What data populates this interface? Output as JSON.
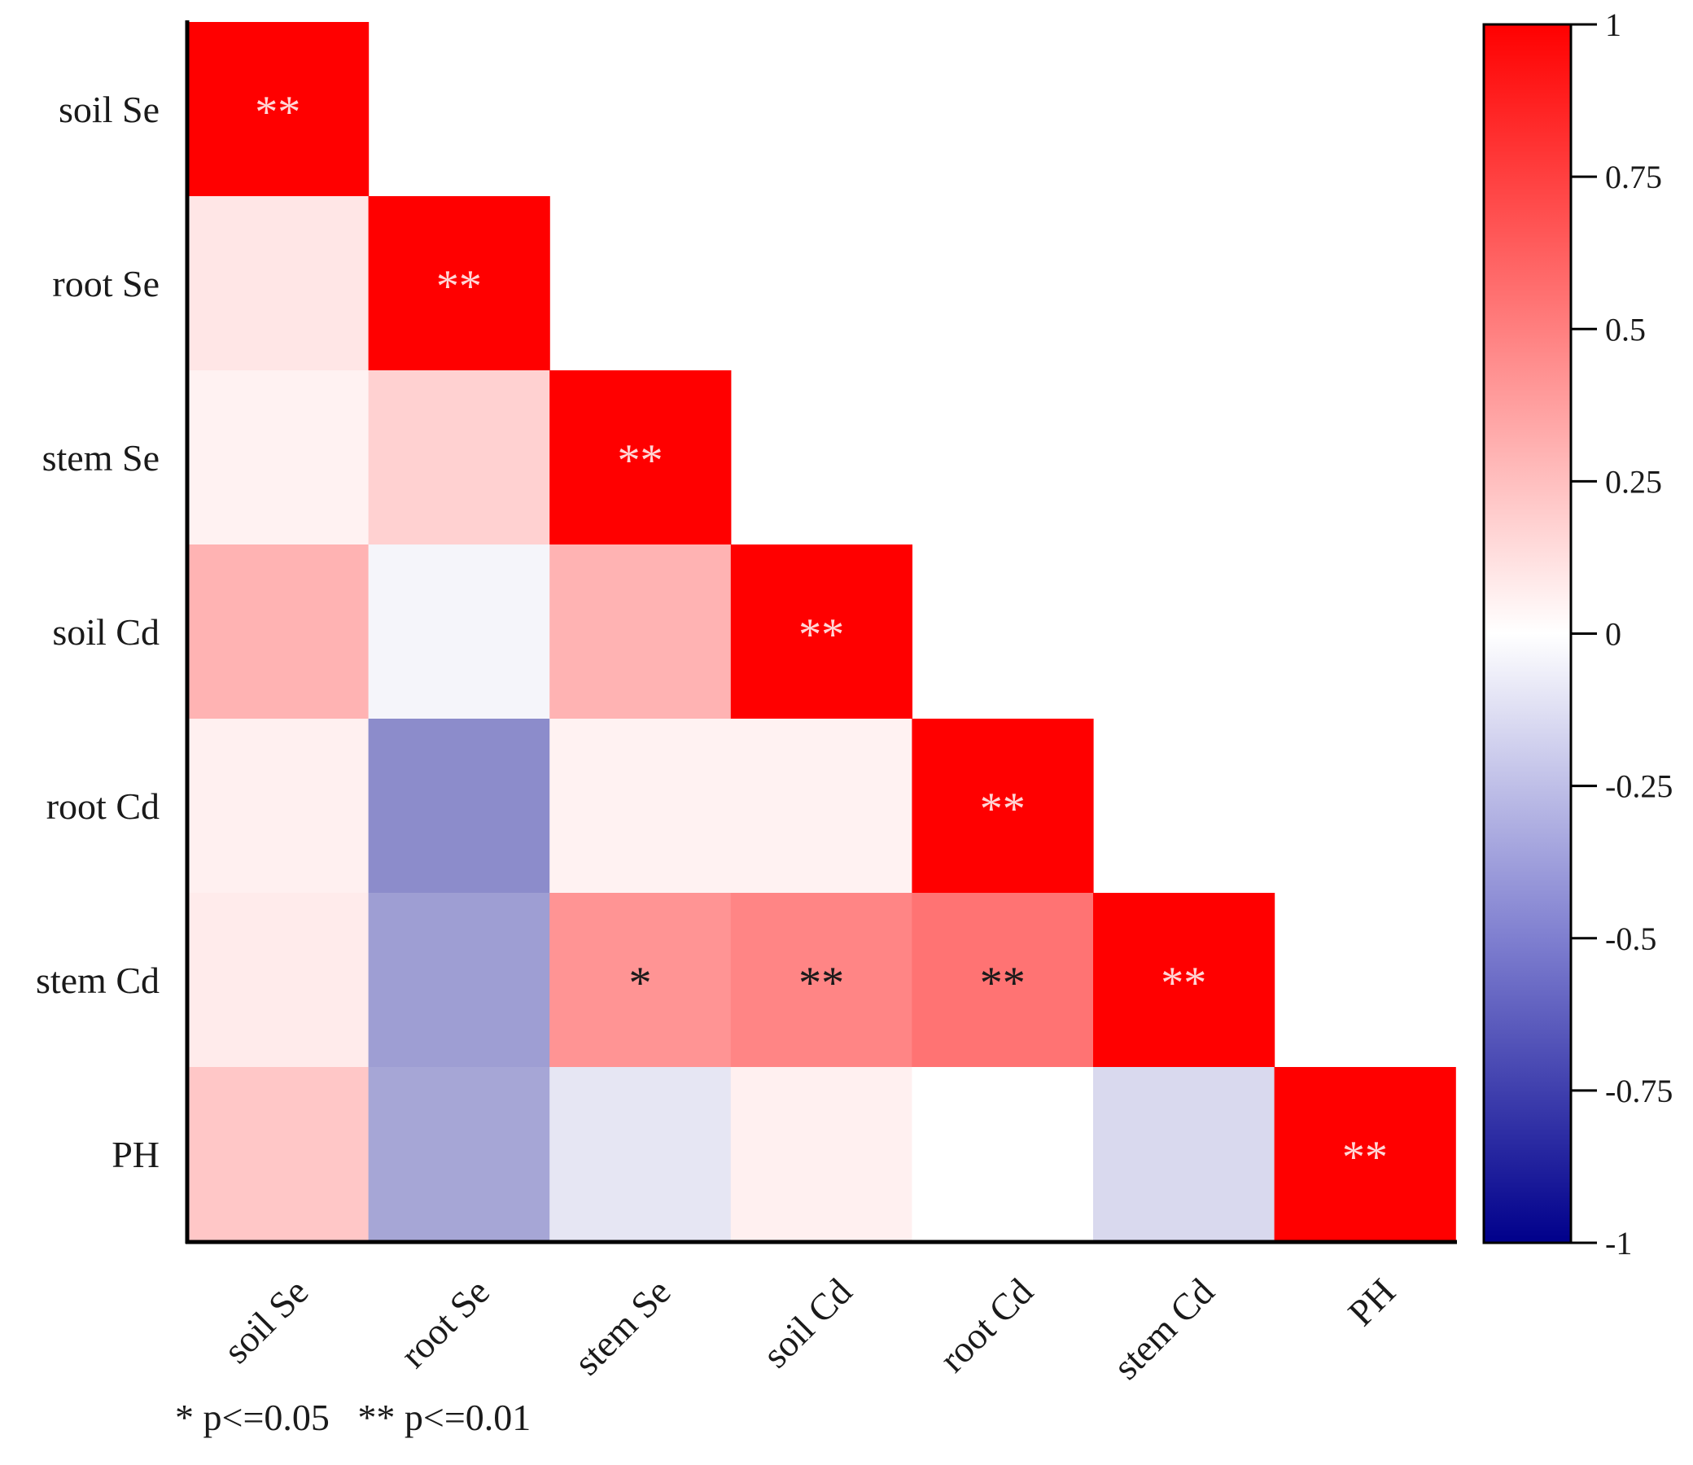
{
  "chart_data": {
    "type": "heatmap",
    "subtype": "lower-triangle correlation matrix",
    "variables": [
      "soil Se",
      "root Se",
      "stem Se",
      "soil Cd",
      "root Cd",
      "stem Cd",
      "PH"
    ],
    "matrix": [
      [
        1.0,
        null,
        null,
        null,
        null,
        null,
        null
      ],
      [
        0.1,
        1.0,
        null,
        null,
        null,
        null,
        null
      ],
      [
        0.05,
        0.18,
        1.0,
        null,
        null,
        null,
        null
      ],
      [
        0.3,
        -0.04,
        0.3,
        1.0,
        null,
        null,
        null
      ],
      [
        0.06,
        -0.45,
        0.05,
        0.05,
        1.0,
        null,
        null
      ],
      [
        0.08,
        -0.38,
        0.42,
        0.48,
        0.55,
        1.0,
        null
      ],
      [
        0.22,
        -0.35,
        -0.1,
        0.06,
        0.0,
        -0.15,
        1.0
      ]
    ],
    "significance": [
      [
        "**",
        "",
        "",
        "",
        "",
        "",
        ""
      ],
      [
        "",
        "**",
        "",
        "",
        "",
        "",
        ""
      ],
      [
        "",
        "",
        "**",
        "",
        "",
        "",
        ""
      ],
      [
        "",
        "",
        "",
        "**",
        "",
        "",
        ""
      ],
      [
        "",
        "",
        "",
        "",
        "**",
        "",
        ""
      ],
      [
        "",
        "",
        "*",
        "**",
        "**",
        "**",
        ""
      ],
      [
        "",
        "",
        "",
        "",
        "",
        "",
        "**"
      ]
    ],
    "colorbar": {
      "range": [
        -1,
        1
      ],
      "ticks": [
        1,
        0.75,
        0.5,
        0.25,
        0,
        -0.25,
        -0.5,
        -0.75,
        -1
      ],
      "tick_labels": [
        "1",
        "0.75",
        "0.5",
        "0.25",
        "0",
        "-0.25",
        "-0.5",
        "-0.75",
        "-1"
      ],
      "colors": {
        "low": "#00008b",
        "mid_low": "#6a6acc",
        "zero": "#ffffff",
        "mid_high": "#ff8080",
        "high": "#ff0000"
      }
    },
    "legend_note": "* p<=0.05   ** p<=0.01"
  }
}
